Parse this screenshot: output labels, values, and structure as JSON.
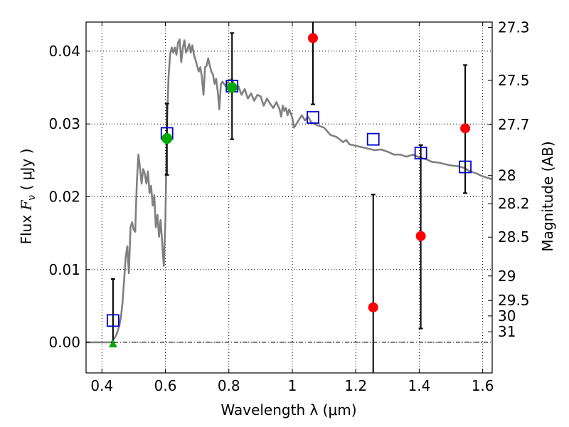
{
  "chart_data": {
    "type": "scatter",
    "xlabel": "Wavelength  λ (μm)",
    "ylabel": "Flux  F_ν  ( μJy )",
    "ylabel_parts": {
      "prefix": "Flux  ",
      "symbol": "F",
      "subscript": "ν",
      "suffix": "  ( μJy )"
    },
    "y2label": "Magnitude (AB)",
    "xlim": [
      0.35,
      1.63
    ],
    "ylim": [
      -0.0042,
      0.044
    ],
    "grid": true,
    "x_ticks": [
      {
        "value": 0.4,
        "label": "0.4"
      },
      {
        "value": 0.6,
        "label": "0.6"
      },
      {
        "value": 0.8,
        "label": "0.8"
      },
      {
        "value": 1.0,
        "label": "1"
      },
      {
        "value": 1.2,
        "label": "1.2"
      },
      {
        "value": 1.4,
        "label": "1.4"
      },
      {
        "value": 1.6,
        "label": "1.6"
      }
    ],
    "y_ticks": [
      {
        "value": 0.0,
        "label": "0.00"
      },
      {
        "value": 0.01,
        "label": "0.01"
      },
      {
        "value": 0.02,
        "label": "0.02"
      },
      {
        "value": 0.03,
        "label": "0.03"
      },
      {
        "value": 0.04,
        "label": "0.04"
      }
    ],
    "magnitude_ticks": [
      {
        "flux": 0.04326,
        "label": "27.3"
      },
      {
        "flux": 0.03598,
        "label": "27.5"
      },
      {
        "flux": 0.02993,
        "label": "27.7"
      },
      {
        "flux": 0.02291,
        "label": "28"
      },
      {
        "flux": 0.01905,
        "label": "28.2"
      },
      {
        "flux": 0.01445,
        "label": "28.5"
      },
      {
        "flux": 0.00912,
        "label": "29"
      },
      {
        "flux": 0.00575,
        "label": "29.5"
      },
      {
        "flux": 0.00363,
        "label": "30"
      },
      {
        "flux": 0.00145,
        "label": "31"
      }
    ],
    "colors": {
      "sed": "#808080",
      "model": "#0000cc",
      "detection": "#ff0000",
      "detection_green": "#00aa00",
      "errorbar": "#000000"
    },
    "series": [
      {
        "kind": "sed-line",
        "points": [
          [
            0.35,
            0.0
          ],
          [
            0.43,
            0.0
          ],
          [
            0.435,
            0.0003
          ],
          [
            0.44,
            0.0006
          ],
          [
            0.445,
            0.001
          ],
          [
            0.45,
            0.0016
          ],
          [
            0.455,
            0.0023
          ],
          [
            0.46,
            0.0035
          ],
          [
            0.465,
            0.0055
          ],
          [
            0.47,
            0.0085
          ],
          [
            0.475,
            0.0118
          ],
          [
            0.48,
            0.0132
          ],
          [
            0.485,
            0.0095
          ],
          [
            0.49,
            0.0158
          ],
          [
            0.495,
            0.0165
          ],
          [
            0.5,
            0.0155
          ],
          [
            0.505,
            0.0152
          ],
          [
            0.51,
            0.022
          ],
          [
            0.515,
            0.0258
          ],
          [
            0.52,
            0.024
          ],
          [
            0.525,
            0.0218
          ],
          [
            0.53,
            0.0238
          ],
          [
            0.535,
            0.0232
          ],
          [
            0.54,
            0.0218
          ],
          [
            0.545,
            0.0235
          ],
          [
            0.55,
            0.0205
          ],
          [
            0.555,
            0.0215
          ],
          [
            0.56,
            0.0188
          ],
          [
            0.565,
            0.0202
          ],
          [
            0.57,
            0.0158
          ],
          [
            0.575,
            0.0175
          ],
          [
            0.58,
            0.0145
          ],
          [
            0.585,
            0.0168
          ],
          [
            0.59,
            0.0135
          ],
          [
            0.595,
            0.0105
          ],
          [
            0.6,
            0.0165
          ],
          [
            0.605,
            0.03
          ],
          [
            0.61,
            0.0365
          ],
          [
            0.615,
            0.0395
          ],
          [
            0.62,
            0.0405
          ],
          [
            0.625,
            0.0398
          ],
          [
            0.63,
            0.0405
          ],
          [
            0.635,
            0.0395
          ],
          [
            0.64,
            0.0412
          ],
          [
            0.645,
            0.0416
          ],
          [
            0.65,
            0.0385
          ],
          [
            0.655,
            0.0405
          ],
          [
            0.66,
            0.0415
          ],
          [
            0.665,
            0.0398
          ],
          [
            0.67,
            0.0403
          ],
          [
            0.675,
            0.041
          ],
          [
            0.68,
            0.0398
          ],
          [
            0.685,
            0.0408
          ],
          [
            0.69,
            0.0395
          ],
          [
            0.695,
            0.0388
          ],
          [
            0.7,
            0.038
          ],
          [
            0.705,
            0.0372
          ],
          [
            0.71,
            0.0378
          ],
          [
            0.715,
            0.0365
          ],
          [
            0.72,
            0.034
          ],
          [
            0.725,
            0.0378
          ],
          [
            0.73,
            0.038
          ],
          [
            0.735,
            0.039
          ],
          [
            0.74,
            0.038
          ],
          [
            0.745,
            0.0372
          ],
          [
            0.75,
            0.0368
          ],
          [
            0.755,
            0.0355
          ],
          [
            0.76,
            0.0362
          ],
          [
            0.765,
            0.0345
          ],
          [
            0.77,
            0.032
          ],
          [
            0.775,
            0.0355
          ],
          [
            0.78,
            0.0358
          ],
          [
            0.79,
            0.0352
          ],
          [
            0.8,
            0.036
          ],
          [
            0.81,
            0.0362
          ],
          [
            0.82,
            0.0348
          ],
          [
            0.83,
            0.0352
          ],
          [
            0.84,
            0.034
          ],
          [
            0.85,
            0.0348
          ],
          [
            0.86,
            0.0335
          ],
          [
            0.87,
            0.0342
          ],
          [
            0.88,
            0.0332
          ],
          [
            0.89,
            0.034
          ],
          [
            0.9,
            0.0338
          ],
          [
            0.91,
            0.0325
          ],
          [
            0.92,
            0.0335
          ],
          [
            0.93,
            0.0328
          ],
          [
            0.94,
            0.0322
          ],
          [
            0.95,
            0.033
          ],
          [
            0.96,
            0.032
          ],
          [
            0.965,
            0.031
          ],
          [
            0.97,
            0.0325
          ],
          [
            0.975,
            0.0318
          ],
          [
            0.98,
            0.0322
          ],
          [
            0.985,
            0.0312
          ],
          [
            0.99,
            0.032
          ],
          [
            0.995,
            0.0315
          ],
          [
            1.0,
            0.0308
          ],
          [
            1.005,
            0.0295
          ],
          [
            1.01,
            0.0298
          ],
          [
            1.02,
            0.0305
          ],
          [
            1.03,
            0.0312
          ],
          [
            1.04,
            0.0305
          ],
          [
            1.05,
            0.031
          ],
          [
            1.06,
            0.0302
          ],
          [
            1.08,
            0.0298
          ],
          [
            1.1,
            0.0295
          ],
          [
            1.12,
            0.0285
          ],
          [
            1.14,
            0.0282
          ],
          [
            1.16,
            0.0275
          ],
          [
            1.17,
            0.0278
          ],
          [
            1.18,
            0.0272
          ],
          [
            1.2,
            0.027
          ],
          [
            1.22,
            0.0268
          ],
          [
            1.24,
            0.0266
          ],
          [
            1.26,
            0.0264
          ],
          [
            1.28,
            0.0265
          ],
          [
            1.3,
            0.0262
          ],
          [
            1.32,
            0.0258
          ],
          [
            1.34,
            0.0258
          ],
          [
            1.36,
            0.0255
          ],
          [
            1.38,
            0.0258
          ],
          [
            1.4,
            0.0254
          ],
          [
            1.42,
            0.0252
          ],
          [
            1.44,
            0.0248
          ],
          [
            1.46,
            0.0247
          ],
          [
            1.48,
            0.0245
          ],
          [
            1.5,
            0.0243
          ],
          [
            1.52,
            0.0242
          ],
          [
            1.54,
            0.024
          ],
          [
            1.56,
            0.0235
          ],
          [
            1.58,
            0.0232
          ],
          [
            1.6,
            0.0228
          ],
          [
            1.63,
            0.0224
          ]
        ]
      },
      {
        "kind": "model-squares",
        "points": [
          [
            0.435,
            0.003
          ],
          [
            0.605,
            0.0287
          ],
          [
            0.81,
            0.0352
          ],
          [
            1.065,
            0.0309
          ],
          [
            1.255,
            0.0279
          ],
          [
            1.405,
            0.026
          ],
          [
            1.545,
            0.0241
          ]
        ]
      },
      {
        "kind": "red-detections",
        "points": [
          [
            1.065,
            0.0418
          ],
          [
            1.255,
            0.0048
          ],
          [
            1.405,
            0.0146
          ],
          [
            1.545,
            0.0294
          ]
        ]
      },
      {
        "kind": "green-detections",
        "points": [
          [
            0.605,
            0.028
          ],
          [
            0.81,
            0.035
          ]
        ]
      },
      {
        "kind": "green-upper-limit",
        "points": [
          [
            0.435,
            -0.0002
          ]
        ]
      },
      {
        "kind": "errorbars",
        "bars": [
          {
            "x": 0.435,
            "low": 0.0,
            "high": 0.0087
          },
          {
            "x": 0.605,
            "low": 0.023,
            "high": 0.0328
          },
          {
            "x": 0.81,
            "low": 0.0279,
            "high": 0.0425
          },
          {
            "x": 1.065,
            "low": 0.0327,
            "high": 0.0445
          },
          {
            "x": 1.255,
            "low": -0.0045,
            "high": 0.0203
          },
          {
            "x": 1.405,
            "low": 0.0019,
            "high": 0.0271
          },
          {
            "x": 1.545,
            "low": 0.0205,
            "high": 0.0381
          }
        ]
      }
    ]
  }
}
